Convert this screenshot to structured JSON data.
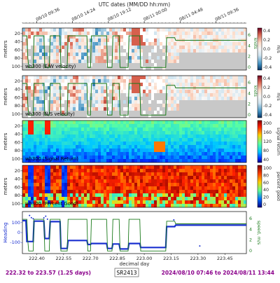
{
  "header": {
    "title": "UTC dates (MM/DD hh:mm)",
    "date_ticks": [
      "08/10 09:36",
      "08/10 14:24",
      "08/10 19:12",
      "08/11 00:00",
      "08/11 04:48",
      "08/11 09:36"
    ]
  },
  "panels": [
    {
      "label": "wh300 (E/W velocity)",
      "ylabel": "meters",
      "yticks": [
        "20",
        "40",
        "60",
        "80",
        "100"
      ],
      "cbar_ticks": [
        "0.4",
        "0.2",
        "0.0",
        "-0.2",
        "-0.4"
      ],
      "cbar_label": "m/s",
      "right_ticks": [
        "6",
        "4",
        "2",
        "0"
      ],
      "right_label": "knots"
    },
    {
      "label": "wh300 (N/S velocity)",
      "ylabel": "meters",
      "yticks": [
        "20",
        "40",
        "60",
        "80",
        "100"
      ],
      "cbar_ticks": [
        "0.4",
        "0.2",
        "0.0",
        "-0.2",
        "-0.4"
      ],
      "cbar_label": "m/s",
      "right_ticks": [
        "6",
        "4",
        "2",
        "0"
      ],
      "right_label": "knots"
    },
    {
      "label": "wh300 (Signal Return)",
      "ylabel": "meters",
      "yticks": [
        "20",
        "40",
        "60",
        "80",
        "100"
      ],
      "cbar_ticks": [
        "200",
        "160",
        "120",
        "80",
        "40"
      ],
      "cbar_label": "signal return"
    },
    {
      "label": "wh300 (Percent Good)",
      "ylabel": "meters",
      "yticks": [
        "20",
        "40",
        "60",
        "80",
        "100"
      ],
      "cbar_ticks": [
        "100",
        "80",
        "60",
        "40",
        "20",
        "0"
      ],
      "cbar_label": "percent good"
    }
  ],
  "bottom": {
    "ylabel_left": "Heading",
    "ylabel_right": "speed, m/s",
    "left_ticks": [
      "100",
      "0",
      "-100"
    ],
    "right_ticks": [
      "6",
      "4",
      "2",
      "0"
    ],
    "xlabel": "decimal day",
    "xticks": [
      "222.40",
      "222.55",
      "222.70",
      "222.85",
      "223.00",
      "223.15",
      "223.30",
      "223.45"
    ]
  },
  "footer": {
    "range": "222.32 to 223.57 (1.25 days)",
    "cruise": "SR2413",
    "dates": "2024/08/10 07:46 to 2024/08/11 13:44"
  },
  "chart_data": {
    "type": "heatmap",
    "xlabel": "decimal day",
    "xlim": [
      222.32,
      223.57
    ],
    "depth_range": [
      10,
      100
    ],
    "speed_knots": {
      "x": [
        222.32,
        222.345,
        222.35,
        222.355,
        222.38,
        222.385,
        222.44,
        222.445,
        222.47,
        222.475,
        222.53,
        222.535,
        222.57,
        222.575,
        222.68,
        222.685,
        222.7,
        222.705,
        222.79,
        222.795,
        222.82,
        222.825,
        222.86,
        222.865,
        222.91,
        222.915,
        222.975,
        222.98,
        223.12,
        223.125,
        223.17,
        223.175,
        223.57
      ],
      "y": [
        5.3,
        5.3,
        2.0,
        0.4,
        0.4,
        5.3,
        5.3,
        0.4,
        0.4,
        5.3,
        5.3,
        0.4,
        0.4,
        5.3,
        5.3,
        0.4,
        0.4,
        5.3,
        5.3,
        0.4,
        0.4,
        5.3,
        5.3,
        0.4,
        0.4,
        5.3,
        5.3,
        0.4,
        0.4,
        5.0,
        5.0,
        4.6,
        4.6
      ]
    },
    "heading_deg": {
      "x": [
        222.32,
        222.34,
        222.345,
        222.38,
        222.385,
        222.44,
        222.445,
        222.47,
        222.475,
        222.53,
        222.535,
        222.57,
        222.575,
        222.68,
        222.685,
        222.7,
        222.705,
        222.79,
        222.795,
        222.82,
        222.825,
        222.86,
        222.865,
        222.91,
        222.915,
        222.975,
        222.98,
        223.12,
        223.125,
        223.17,
        223.175,
        223.57
      ],
      "y": [
        120,
        120,
        -90,
        -90,
        115,
        115,
        -60,
        -60,
        110,
        110,
        -160,
        -160,
        -80,
        -80,
        -120,
        -120,
        -110,
        -110,
        -160,
        -160,
        -115,
        -115,
        -165,
        -165,
        -110,
        -110,
        -150,
        -150,
        60,
        60,
        75,
        75
      ]
    }
  }
}
